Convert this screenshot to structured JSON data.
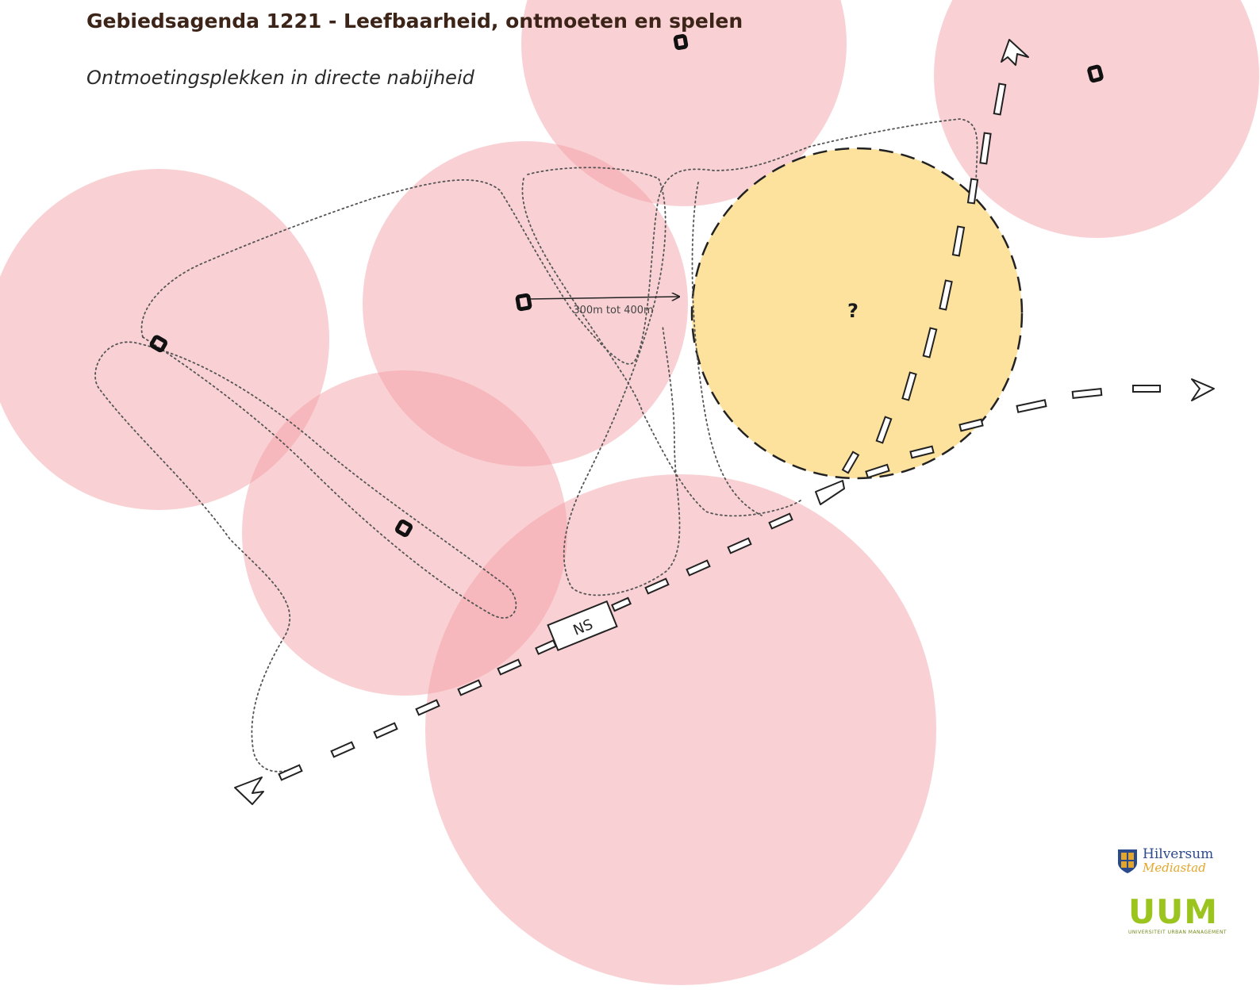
{
  "header": {
    "title": "Gebiedsagenda 1221 - Leefbaarheid, ontmoeten en spelen",
    "subtitle": "Ontmoetingsplekken in directe nabijheid"
  },
  "map": {
    "distance_label": "300m tot 400m",
    "unknown_zone_label": "?",
    "station_label": "NS",
    "colors": {
      "radius_circle": "#f7b6b8",
      "unknown_zone": "#fce3a3",
      "title": "#3d2418"
    },
    "meeting_point_icon": "meeting-point-icon"
  },
  "logos": {
    "hilversum_line1": "Hilversum",
    "hilversum_line2": "Mediastad",
    "uum_letters": "UUM",
    "uum_tagline": "UNIVERSITEIT URBAN MANAGEMENT"
  }
}
